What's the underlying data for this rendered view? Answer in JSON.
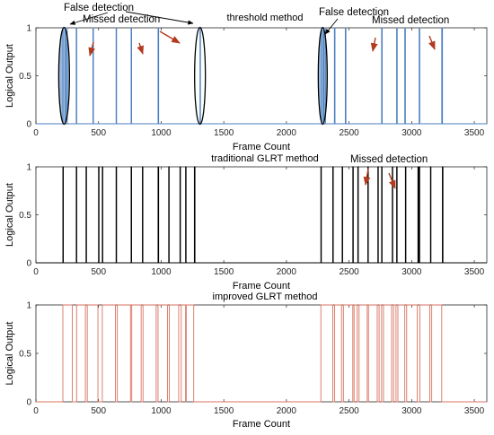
{
  "chart_data": [
    {
      "type": "line",
      "title": "threshold method",
      "xlabel": "Frame Count",
      "ylabel": "Logical Output",
      "xlim": [
        0,
        3600
      ],
      "ylim": [
        0,
        1
      ],
      "xticks": [
        0,
        500,
        1000,
        1500,
        2000,
        2500,
        3000,
        3500
      ],
      "yticks": [
        0,
        0.5,
        1
      ],
      "series": [
        {
          "color": "#4a7fc0",
          "pulses": [
            [
              215,
              235
            ],
            [
              238,
              250
            ],
            [
              322,
              326
            ],
            [
              455,
              459
            ],
            [
              640,
              644
            ],
            [
              760,
              764
            ],
            [
              975,
              980
            ],
            [
              1310,
              1314
            ],
            [
              2280,
              2296
            ],
            [
              2300,
              2312
            ],
            [
              2383,
              2388
            ],
            [
              2470,
              2475
            ],
            [
              2760,
              2765
            ],
            [
              2880,
              2885
            ],
            [
              2945,
              2950
            ],
            [
              3060,
              3065
            ],
            [
              3240,
              3246
            ]
          ]
        }
      ],
      "annotations": [
        {
          "text": "False detection"
        },
        {
          "text": "Missed detection"
        },
        {
          "text": "False detection"
        },
        {
          "text": "Missed detection"
        }
      ]
    },
    {
      "type": "line",
      "title": "traditional GLRT method",
      "xlabel": "Frame Count",
      "ylabel": "Logical Output",
      "xlim": [
        0,
        3600
      ],
      "ylim": [
        0,
        1
      ],
      "xticks": [
        0,
        500,
        1000,
        1500,
        2000,
        2500,
        3000,
        3500
      ],
      "yticks": [
        0,
        0.5,
        1
      ],
      "series": [
        {
          "color": "#000000",
          "pulses": [
            [
              215,
              219
            ],
            [
              322,
              326
            ],
            [
              400,
              404
            ],
            [
              500,
              504
            ],
            [
              530,
              534
            ],
            [
              640,
              644
            ],
            [
              760,
              764
            ],
            [
              850,
              854
            ],
            [
              975,
              980
            ],
            [
              1060,
              1064
            ],
            [
              1150,
              1154
            ],
            [
              1195,
              1199
            ],
            [
              1265,
              1270
            ],
            [
              2275,
              2279
            ],
            [
              2370,
              2374
            ],
            [
              2445,
              2449
            ],
            [
              2530,
              2534
            ],
            [
              2570,
              2574
            ],
            [
              2650,
              2654
            ],
            [
              2730,
              2734
            ],
            [
              2760,
              2764
            ],
            [
              2845,
              2849
            ],
            [
              2880,
              2884
            ],
            [
              2950,
              2954
            ],
            [
              3050,
              3054
            ],
            [
              3060,
              3064
            ],
            [
              3150,
              3154
            ],
            [
              3245,
              3250
            ]
          ]
        }
      ],
      "annotations": [
        {
          "text": "Missed detection"
        }
      ]
    },
    {
      "type": "line",
      "title": "improved GLRT method",
      "xlabel": "Frame Count",
      "ylabel": "Logical Output",
      "xlim": [
        0,
        3600
      ],
      "ylim": [
        0,
        1
      ],
      "xticks": [
        0,
        500,
        1000,
        1500,
        2000,
        2500,
        3000,
        3500
      ],
      "yticks": [
        0,
        0.5,
        1
      ],
      "series": [
        {
          "color": "#d9725f",
          "pulses": [
            [
              215,
              290
            ],
            [
              325,
              395
            ],
            [
              410,
              495
            ],
            [
              530,
              635
            ],
            [
              650,
              755
            ],
            [
              765,
              840
            ],
            [
              855,
              960
            ],
            [
              975,
              1050
            ],
            [
              1065,
              1140
            ],
            [
              1160,
              1195
            ],
            [
              1200,
              1260
            ],
            [
              2275,
              2370
            ],
            [
              2385,
              2440
            ],
            [
              2455,
              2530
            ],
            [
              2540,
              2565
            ],
            [
              2580,
              2645
            ],
            [
              2655,
              2725
            ],
            [
              2740,
              2760
            ],
            [
              2775,
              2840
            ],
            [
              2855,
              2875
            ],
            [
              2890,
              2945
            ],
            [
              2960,
              3045
            ],
            [
              3065,
              3145
            ],
            [
              3160,
              3240
            ]
          ]
        }
      ]
    }
  ]
}
